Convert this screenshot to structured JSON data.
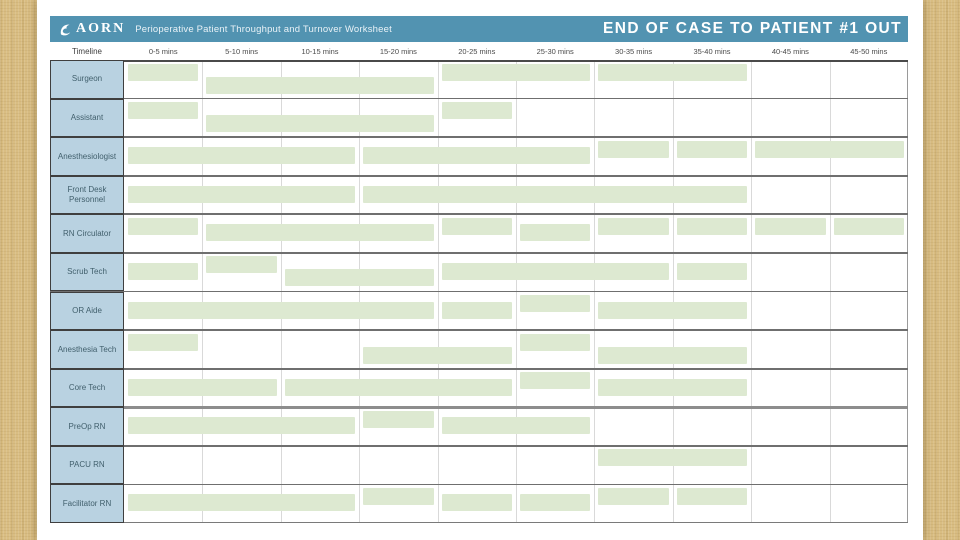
{
  "header": {
    "logo_text": "AORN",
    "logo_icon": "aorn-bird-icon",
    "subtitle": "Perioperative Patient Throughput and Turnover Worksheet",
    "title": "END OF CASE TO PATIENT #1 OUT"
  },
  "timeline": {
    "label": "Timeline",
    "columns": [
      "0-5 mins",
      "5-10 mins",
      "10-15 mins",
      "15-20 mins",
      "20-25 mins",
      "25-30 mins",
      "30-35 mins",
      "35-40 mins",
      "40-45 mins",
      "45-50 mins"
    ]
  },
  "colors": {
    "header_bg": "#5293b1",
    "header_text": "#ffffff",
    "row_label_bg": "#b9d2e1",
    "row_label_text": "#42606d",
    "bar_fill": "#dde9d1",
    "column_line": "#d9d9d9",
    "row_line": "#6f6f6f",
    "thick_row_line": "#8d8d8d",
    "grid_top_line": "#4a4a4a",
    "grid_bottom_line": "#7a7a7a",
    "grid_right_line": "#9a9a9a"
  },
  "chart_data": {
    "type": "gantt",
    "title": "END OF CASE TO PATIENT #1 OUT",
    "x_axis": {
      "unit": "minutes",
      "range": [
        0,
        50
      ],
      "step": 5,
      "tick_labels": [
        "0-5 mins",
        "5-10 mins",
        "10-15 mins",
        "15-20 mins",
        "20-25 mins",
        "25-30 mins",
        "30-35 mins",
        "35-40 mins",
        "40-45 mins",
        "45-50 mins"
      ]
    },
    "rows": [
      {
        "role": "Surgeon",
        "bars": [
          {
            "start_min": 0,
            "end_min": 5,
            "pos": "top"
          },
          {
            "start_min": 5,
            "end_min": 20,
            "pos": "bottom"
          },
          {
            "start_min": 20,
            "end_min": 30,
            "pos": "top"
          },
          {
            "start_min": 30,
            "end_min": 40,
            "pos": "top"
          }
        ]
      },
      {
        "role": "Assistant",
        "bars": [
          {
            "start_min": 0,
            "end_min": 5,
            "pos": "top"
          },
          {
            "start_min": 5,
            "end_min": 20,
            "pos": "bottom"
          },
          {
            "start_min": 20,
            "end_min": 25,
            "pos": "top"
          }
        ]
      },
      {
        "role": "Anesthesiologist",
        "bars": [
          {
            "start_min": 0,
            "end_min": 15,
            "pos": "middle"
          },
          {
            "start_min": 15,
            "end_min": 30,
            "pos": "middle"
          },
          {
            "start_min": 30,
            "end_min": 35,
            "pos": "top"
          },
          {
            "start_min": 35,
            "end_min": 40,
            "pos": "top"
          },
          {
            "start_min": 40,
            "end_min": 50,
            "pos": "top"
          }
        ]
      },
      {
        "role": "Front Desk Personnel",
        "bars": [
          {
            "start_min": 0,
            "end_min": 15,
            "pos": "middle"
          },
          {
            "start_min": 15,
            "end_min": 40,
            "pos": "middle"
          }
        ]
      },
      {
        "role": "RN Circulator",
        "bars": [
          {
            "start_min": 0,
            "end_min": 5,
            "pos": "top"
          },
          {
            "start_min": 5,
            "end_min": 20,
            "pos": "middle"
          },
          {
            "start_min": 20,
            "end_min": 25,
            "pos": "top"
          },
          {
            "start_min": 25,
            "end_min": 30,
            "pos": "middle"
          },
          {
            "start_min": 30,
            "end_min": 35,
            "pos": "top"
          },
          {
            "start_min": 35,
            "end_min": 40,
            "pos": "top"
          },
          {
            "start_min": 40,
            "end_min": 45,
            "pos": "top"
          },
          {
            "start_min": 45,
            "end_min": 50,
            "pos": "top"
          }
        ]
      },
      {
        "role": "Scrub Tech",
        "bars": [
          {
            "start_min": 0,
            "end_min": 5,
            "pos": "middle"
          },
          {
            "start_min": 5,
            "end_min": 10,
            "pos": "top"
          },
          {
            "start_min": 10,
            "end_min": 20,
            "pos": "bottom"
          },
          {
            "start_min": 20,
            "end_min": 35,
            "pos": "middle"
          },
          {
            "start_min": 35,
            "end_min": 40,
            "pos": "middle"
          }
        ]
      },
      {
        "role": "OR Aide",
        "bars": [
          {
            "start_min": 0,
            "end_min": 20,
            "pos": "middle"
          },
          {
            "start_min": 20,
            "end_min": 25,
            "pos": "middle"
          },
          {
            "start_min": 25,
            "end_min": 30,
            "pos": "top"
          },
          {
            "start_min": 30,
            "end_min": 40,
            "pos": "middle"
          }
        ]
      },
      {
        "role": "Anesthesia Tech",
        "bars": [
          {
            "start_min": 0,
            "end_min": 5,
            "pos": "top"
          },
          {
            "start_min": 15,
            "end_min": 25,
            "pos": "bottom"
          },
          {
            "start_min": 25,
            "end_min": 30,
            "pos": "top"
          },
          {
            "start_min": 30,
            "end_min": 40,
            "pos": "bottom"
          }
        ]
      },
      {
        "role": "Core Tech",
        "bars": [
          {
            "start_min": 0,
            "end_min": 10,
            "pos": "middle"
          },
          {
            "start_min": 10,
            "end_min": 25,
            "pos": "middle"
          },
          {
            "start_min": 25,
            "end_min": 30,
            "pos": "top"
          },
          {
            "start_min": 30,
            "end_min": 40,
            "pos": "middle"
          }
        ]
      },
      {
        "role": "PreOp RN",
        "bars": [
          {
            "start_min": 0,
            "end_min": 15,
            "pos": "middle"
          },
          {
            "start_min": 15,
            "end_min": 20,
            "pos": "top"
          },
          {
            "start_min": 20,
            "end_min": 30,
            "pos": "middle"
          }
        ]
      },
      {
        "role": "PACU RN",
        "bars": [
          {
            "start_min": 30,
            "end_min": 40,
            "pos": "top"
          }
        ]
      },
      {
        "role": "Facilitator RN",
        "bars": [
          {
            "start_min": 0,
            "end_min": 15,
            "pos": "middle"
          },
          {
            "start_min": 15,
            "end_min": 20,
            "pos": "top"
          },
          {
            "start_min": 20,
            "end_min": 25,
            "pos": "middle"
          },
          {
            "start_min": 25,
            "end_min": 30,
            "pos": "middle"
          },
          {
            "start_min": 30,
            "end_min": 35,
            "pos": "top"
          },
          {
            "start_min": 35,
            "end_min": 40,
            "pos": "top"
          }
        ]
      }
    ]
  }
}
